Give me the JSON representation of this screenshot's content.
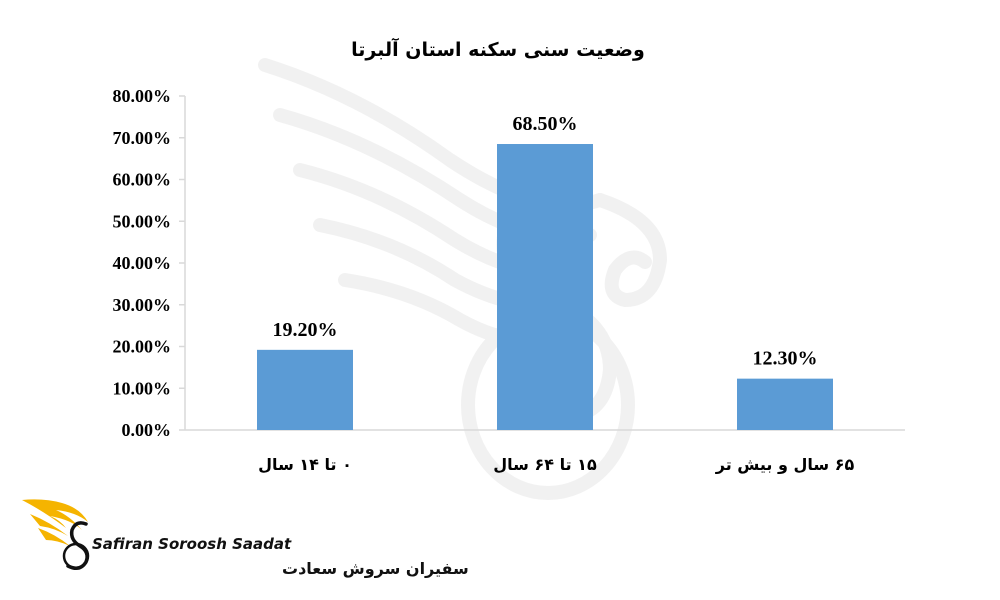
{
  "chart_data": {
    "type": "bar",
    "title": "وضعیت سنی سکنه استان آلبرتا",
    "categories": [
      "۰ تا ۱۴ سال",
      "۱۵ تا ۶۴ سال",
      "۶۵ سال و بیش تر"
    ],
    "values": [
      19.2,
      68.5,
      12.3
    ],
    "data_labels": [
      "19.20%",
      "68.50%",
      "12.30%"
    ],
    "ylim": [
      0,
      80
    ],
    "yticks": [
      0,
      10,
      20,
      30,
      40,
      50,
      60,
      70,
      80
    ],
    "ytick_labels": [
      "0.00%",
      "10.00%",
      "20.00%",
      "30.00%",
      "40.00%",
      "50.00%",
      "60.00%",
      "70.00%",
      "80.00%"
    ],
    "bar_color": "#5b9bd5",
    "grid": false,
    "legend": "none"
  },
  "logo": {
    "name_en": "Safiran Soroosh Saadat",
    "name_fa": "سفیران سروش سعادت",
    "accent_color": "#f5b400",
    "icon": "wing-s-logo-icon"
  }
}
